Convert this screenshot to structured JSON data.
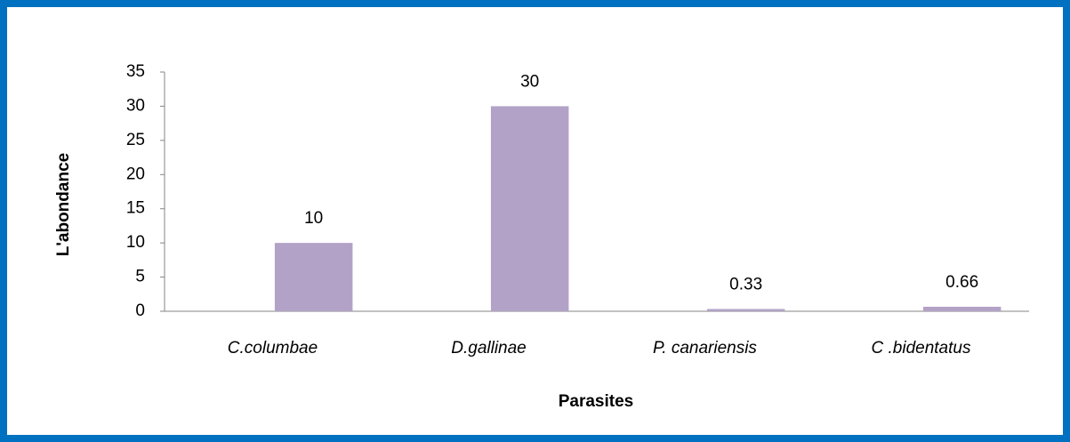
{
  "chart_data": {
    "type": "bar",
    "categories": [
      "C.columbae",
      "D.gallinae",
      "P. canariensis",
      "C .bidentatus"
    ],
    "values": [
      10,
      30,
      0.33,
      0.66
    ],
    "color": "#b3a2c7",
    "ylim": [
      0,
      35
    ],
    "yticks": [
      0,
      5,
      10,
      15,
      20,
      25,
      30,
      35
    ],
    "xlabel": "Parasites",
    "ylabel": "L'abondance",
    "grid": false
  }
}
